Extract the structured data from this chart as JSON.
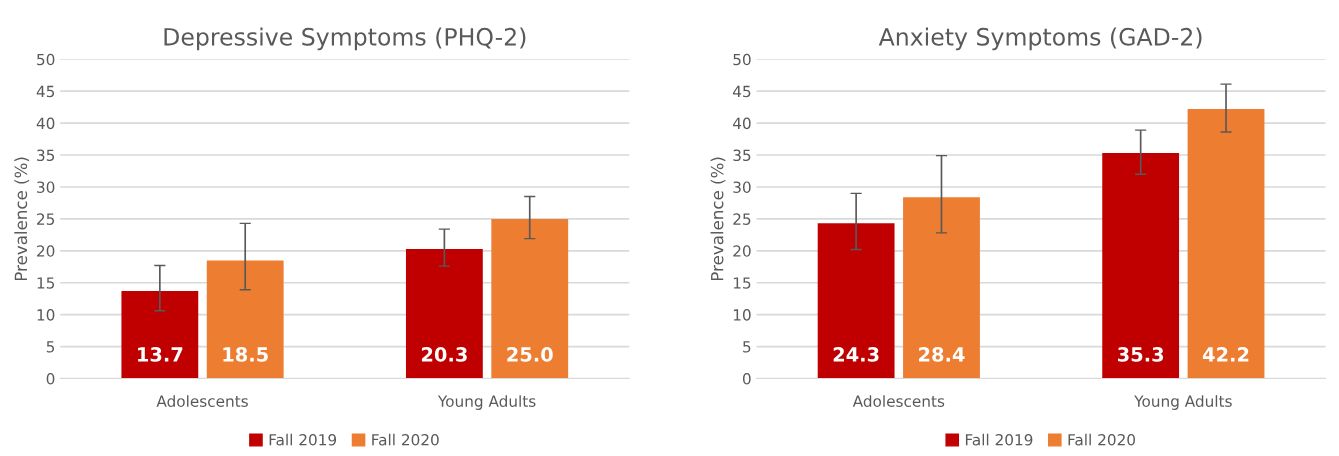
{
  "chart_data": [
    {
      "type": "bar",
      "title": "Depressive Symptoms (PHQ-2)",
      "ylabel": "Prevalence (%)",
      "categories": [
        "Adolescents",
        "Young Adults"
      ],
      "ylim": [
        0,
        50
      ],
      "yticks": [
        0,
        5,
        10,
        15,
        20,
        25,
        30,
        35,
        40,
        45,
        50
      ],
      "grid": "y",
      "legend": "bottom",
      "series": [
        {
          "name": "Fall 2019",
          "color": "#c00000",
          "values": [
            13.7,
            20.3
          ],
          "errors": [
            [
              10.6,
              17.7
            ],
            [
              17.6,
              23.4
            ]
          ],
          "value_labels": [
            "13.7",
            "20.3"
          ]
        },
        {
          "name": "Fall 2020",
          "color": "#ed7d31",
          "values": [
            18.5,
            25.0
          ],
          "errors": [
            [
              13.9,
              24.3
            ],
            [
              21.9,
              28.5
            ]
          ],
          "value_labels": [
            "18.5",
            "25.0"
          ]
        }
      ]
    },
    {
      "type": "bar",
      "title": "Anxiety Symptoms (GAD-2)",
      "ylabel": "Prevalence (%)",
      "categories": [
        "Adolescents",
        "Young Adults"
      ],
      "ylim": [
        0,
        50
      ],
      "yticks": [
        0,
        5,
        10,
        15,
        20,
        25,
        30,
        35,
        40,
        45,
        50
      ],
      "grid": "y",
      "legend": "bottom",
      "data_labels": true,
      "series": [
        {
          "name": "Fall 2019",
          "color": "#c00000",
          "values": [
            24.3,
            35.3
          ],
          "errors": [
            [
              20.2,
              29.0
            ],
            [
              32.0,
              38.9
            ]
          ]
        },
        {
          "name": "Fall 2020",
          "color": "#ed7d31",
          "values": [
            28.4,
            42.2
          ],
          "errors": [
            [
              22.8,
              34.9
            ],
            [
              38.6,
              46.1
            ]
          ]
        }
      ]
    }
  ]
}
